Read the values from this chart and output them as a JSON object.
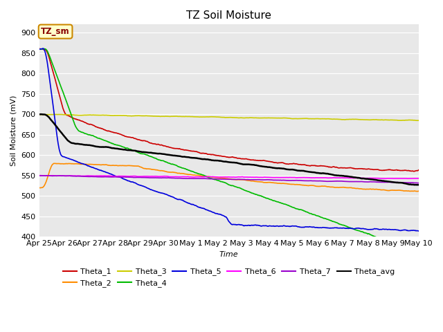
{
  "title": "TZ Soil Moisture",
  "ylabel": "Soil Moisture (mV)",
  "xlabel": "Time",
  "ylim": [
    400,
    920
  ],
  "yticks": [
    400,
    450,
    500,
    550,
    600,
    650,
    700,
    750,
    800,
    850,
    900
  ],
  "date_labels": [
    "Apr 25",
    "Apr 26",
    "Apr 27",
    "Apr 28",
    "Apr 29",
    "Apr 30",
    "May 1",
    "May 2",
    "May 3",
    "May 4",
    "May 5",
    "May 6",
    "May 7",
    "May 8",
    "May 9",
    "May 10"
  ],
  "n_points": 1500,
  "series_order": [
    "Theta_1",
    "Theta_2",
    "Theta_3",
    "Theta_4",
    "Theta_5",
    "Theta_6",
    "Theta_7",
    "Theta_avg"
  ],
  "series": {
    "Theta_1": {
      "color": "#cc0000",
      "lw": 1.2
    },
    "Theta_2": {
      "color": "#ff8c00",
      "lw": 1.2
    },
    "Theta_3": {
      "color": "#cccc00",
      "lw": 1.2
    },
    "Theta_4": {
      "color": "#00bb00",
      "lw": 1.2
    },
    "Theta_5": {
      "color": "#0000dd",
      "lw": 1.2
    },
    "Theta_6": {
      "color": "#ff00ff",
      "lw": 1.2
    },
    "Theta_7": {
      "color": "#9900cc",
      "lw": 1.2
    },
    "Theta_avg": {
      "color": "#000000",
      "lw": 1.8
    }
  },
  "annotation_label": "TZ_sm",
  "annotation_bg": "#ffffcc",
  "annotation_border": "#cc8800",
  "annotation_text_color": "#880000",
  "plot_bg": "#e8e8e8",
  "fig_bg": "#ffffff",
  "title_fontsize": 11,
  "label_fontsize": 8,
  "tick_fontsize": 8
}
